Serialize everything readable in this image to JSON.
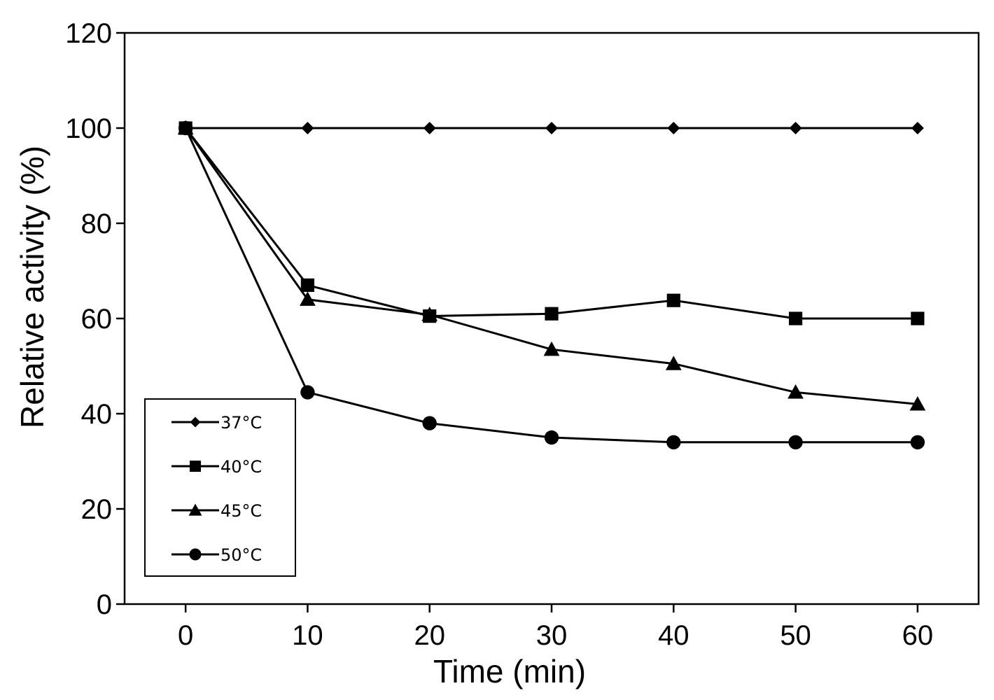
{
  "chart_data": {
    "type": "line",
    "title": "",
    "xlabel": "Time (min)",
    "ylabel": "Relative activity (%)",
    "xlim": [
      -5,
      65
    ],
    "ylim": [
      0,
      120
    ],
    "xticks": [
      0,
      10,
      20,
      30,
      40,
      50,
      60
    ],
    "yticks": [
      0,
      20,
      40,
      60,
      80,
      100,
      120
    ],
    "x": [
      0,
      10,
      20,
      30,
      40,
      50,
      60
    ],
    "legend_position": "bottom-left",
    "grid": false,
    "series": [
      {
        "name": "37°C",
        "marker": "diamond",
        "values": [
          100,
          100,
          100,
          100,
          100,
          100,
          100
        ]
      },
      {
        "name": "40°C",
        "marker": "square",
        "values": [
          100,
          67,
          60.5,
          61,
          63.8,
          60,
          60
        ]
      },
      {
        "name": "45°C",
        "marker": "triangle",
        "values": [
          100,
          64,
          60.8,
          53.5,
          50.5,
          44.5,
          42
        ]
      },
      {
        "name": "50°C",
        "marker": "circle",
        "values": [
          100,
          44.5,
          38,
          35,
          34,
          34,
          34
        ]
      }
    ]
  }
}
